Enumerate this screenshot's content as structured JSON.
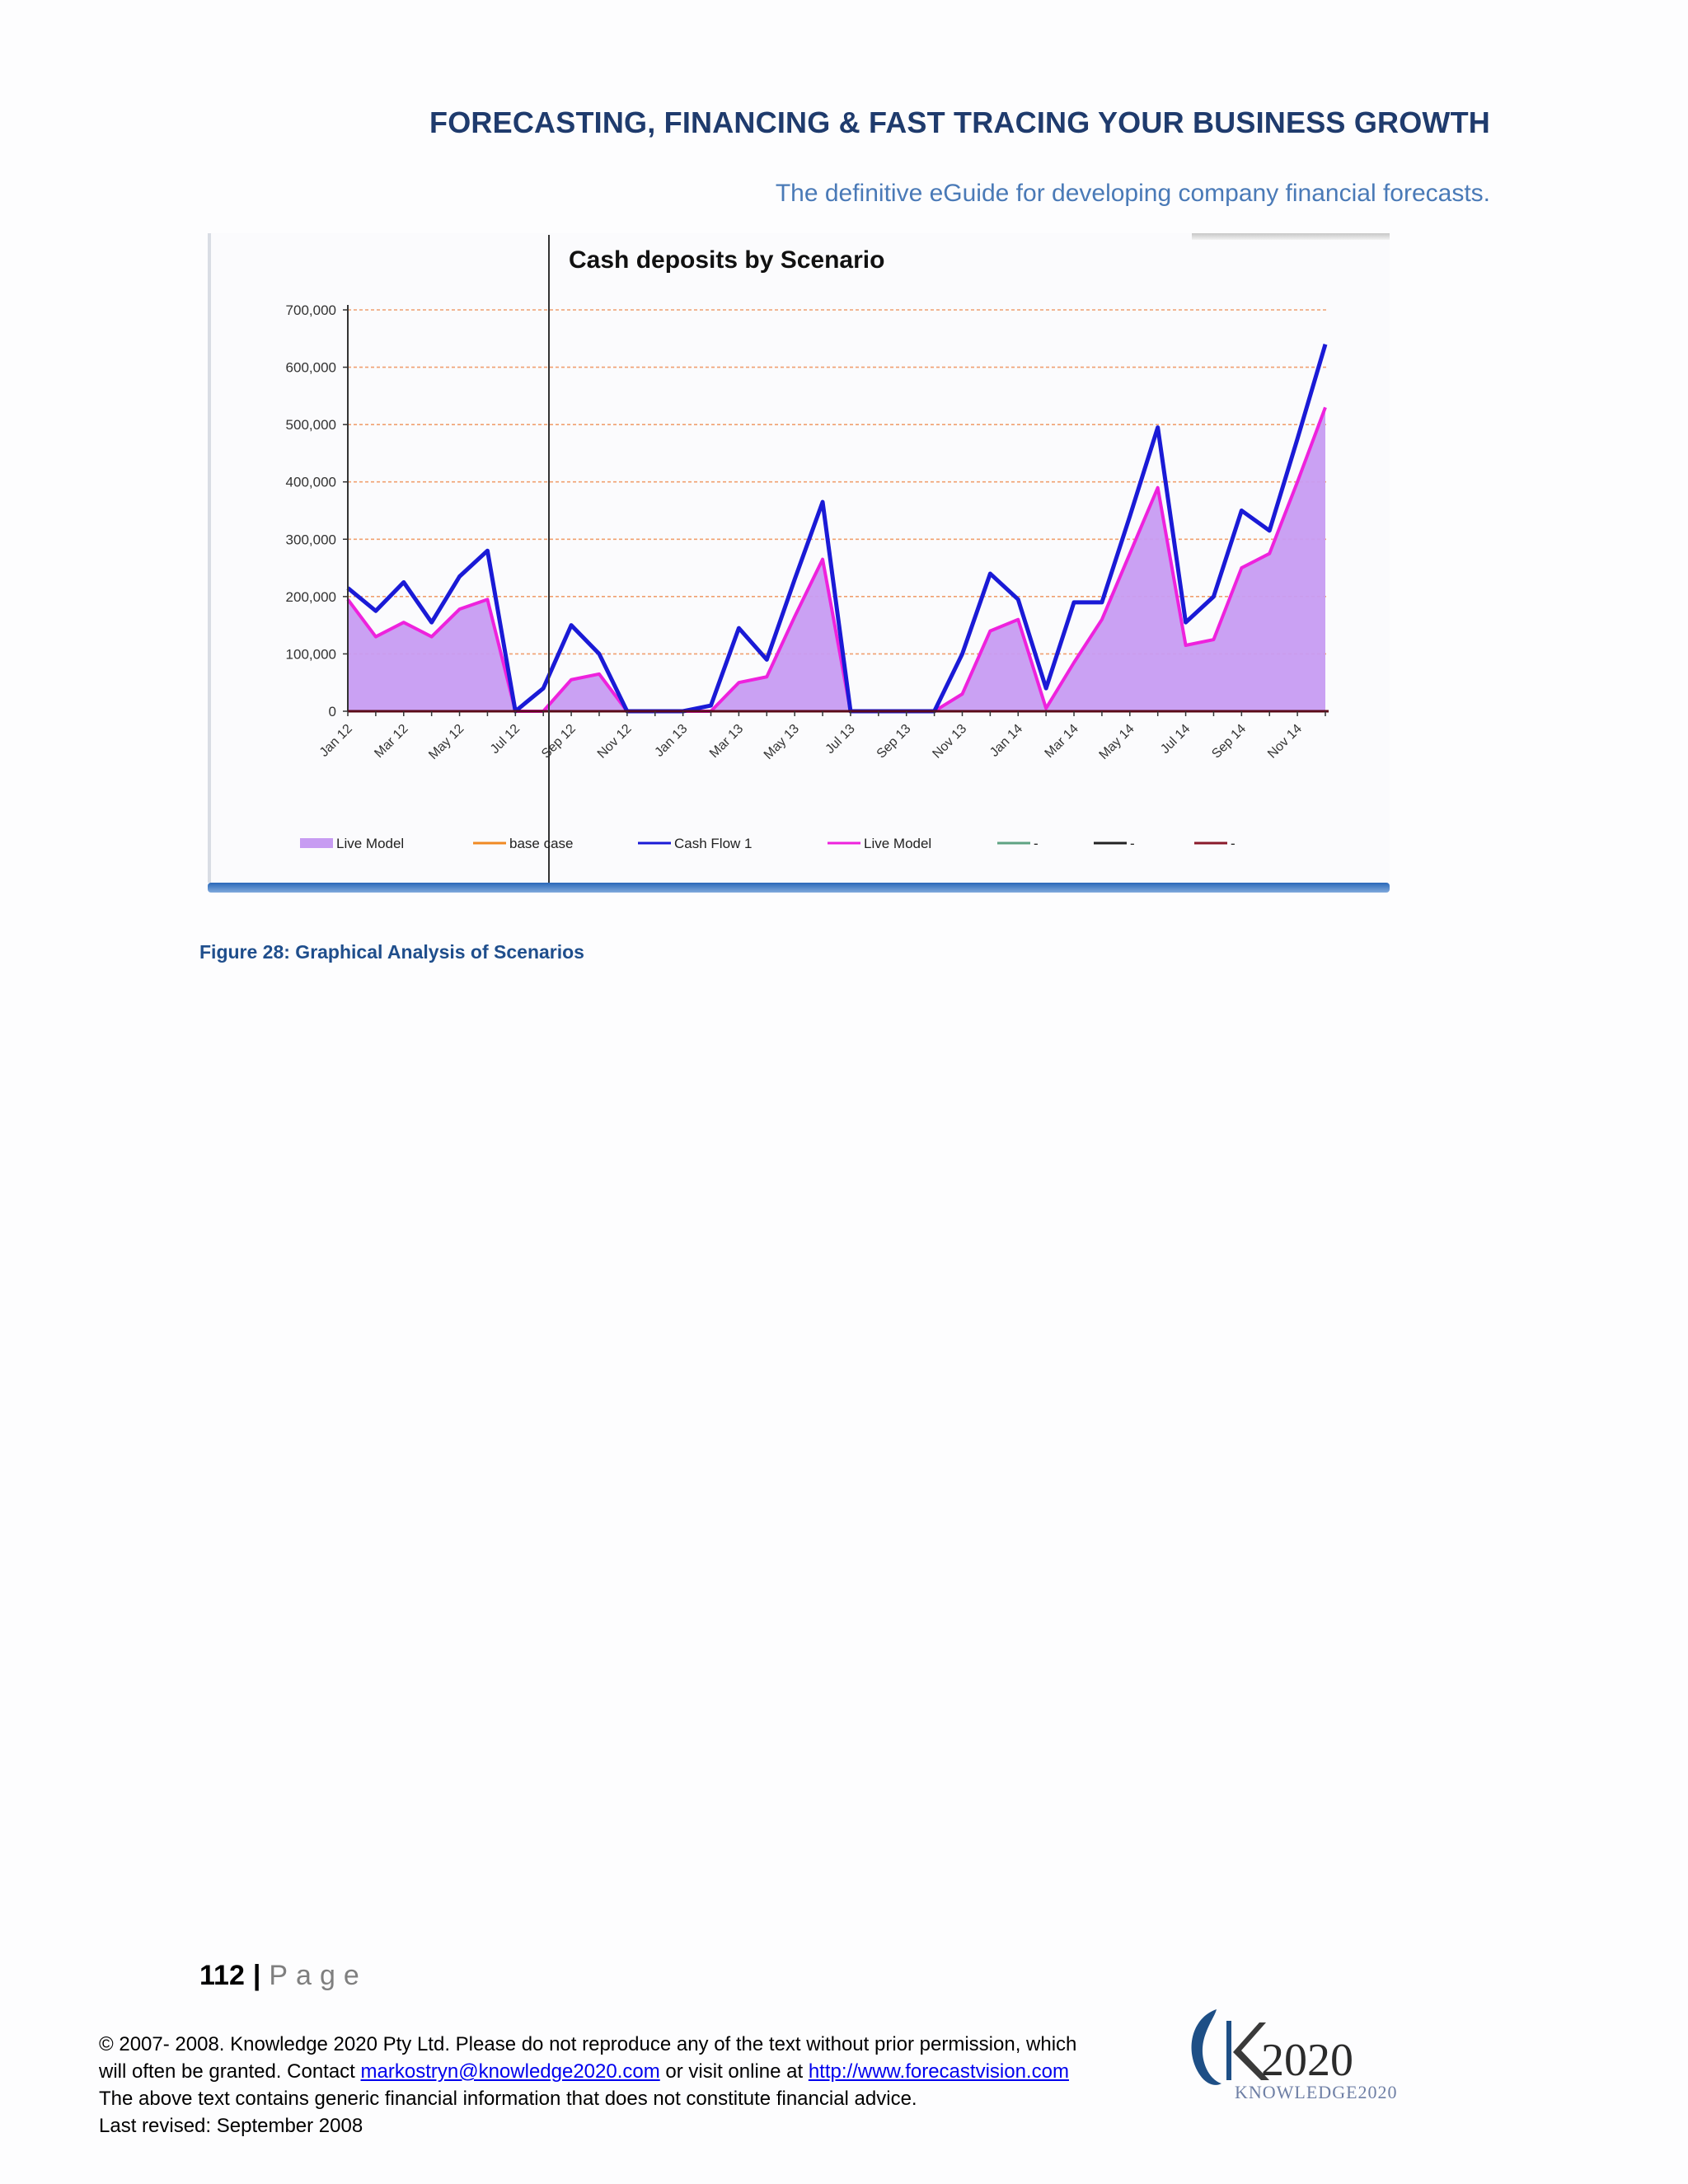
{
  "header": {
    "title": "FORECASTING, FINANCING & FAST TRACING YOUR BUSINESS GROWTH",
    "subtitle": "The definitive eGuide for developing company financial forecasts."
  },
  "figure": {
    "caption": "Figure 28:  Graphical Analysis of Scenarios"
  },
  "chart_data": {
    "type": "line",
    "title": "Cash deposits by Scenario",
    "xlabel": "",
    "ylabel": "",
    "ylim": [
      0,
      700000
    ],
    "y_ticks": [
      0,
      100000,
      200000,
      300000,
      400000,
      500000,
      600000,
      700000
    ],
    "y_tick_labels": [
      "0",
      "100,000",
      "200,000",
      "300,000",
      "400,000",
      "500,000",
      "600,000",
      "700,000"
    ],
    "x_tick_labels": [
      "Jan 12",
      "Mar 12",
      "May 12",
      "Jul 12",
      "Sep 12",
      "Nov 12",
      "Jan 13",
      "Mar 13",
      "May 13",
      "Jul 13",
      "Sep 13",
      "Nov 13",
      "Jan 14",
      "Mar 14",
      "May 14",
      "Jul 14",
      "Sep 14",
      "Nov 14"
    ],
    "categories": [
      "Jan 12",
      "Feb 12",
      "Mar 12",
      "Apr 12",
      "May 12",
      "Jun 12",
      "Jul 12",
      "Aug 12",
      "Sep 12",
      "Oct 12",
      "Nov 12",
      "Dec 12",
      "Jan 13",
      "Feb 13",
      "Mar 13",
      "Apr 13",
      "May 13",
      "Jun 13",
      "Jul 13",
      "Aug 13",
      "Sep 13",
      "Oct 13",
      "Nov 13",
      "Dec 13",
      "Jan 14",
      "Feb 14",
      "Mar 14",
      "Apr 14",
      "May 14",
      "Jun 14",
      "Jul 14",
      "Aug 14",
      "Sep 14",
      "Oct 14",
      "Nov 14",
      "Dec 14"
    ],
    "grid": true,
    "legend_position": "bottom",
    "series": [
      {
        "name": "Live Model",
        "style": "area",
        "color": "#c79cf2",
        "values": [
          195000,
          130000,
          155000,
          130000,
          178000,
          195000,
          0,
          0,
          55000,
          65000,
          0,
          0,
          0,
          0,
          50000,
          60000,
          165000,
          265000,
          0,
          0,
          0,
          0,
          30000,
          140000,
          160000,
          5000,
          85000,
          160000,
          275000,
          390000,
          115000,
          125000,
          250000,
          275000,
          400000,
          530000
        ]
      },
      {
        "name": "base case",
        "style": "line",
        "color": "#f08a24",
        "values": [
          0,
          0,
          0,
          0,
          0,
          0,
          0,
          0,
          0,
          0,
          0,
          0,
          0,
          0,
          0,
          0,
          0,
          0,
          0,
          0,
          0,
          0,
          0,
          0,
          0,
          0,
          0,
          0,
          0,
          0,
          0,
          0,
          0,
          0,
          0,
          0
        ]
      },
      {
        "name": "Cash Flow 1",
        "style": "line",
        "color": "#1a1ad6",
        "values": [
          215000,
          175000,
          225000,
          155000,
          235000,
          280000,
          0,
          40000,
          150000,
          100000,
          0,
          0,
          0,
          10000,
          145000,
          90000,
          230000,
          365000,
          0,
          0,
          0,
          0,
          100000,
          240000,
          195000,
          40000,
          190000,
          190000,
          340000,
          495000,
          155000,
          200000,
          350000,
          315000,
          475000,
          640000
        ]
      },
      {
        "name": "Live Model",
        "style": "line",
        "color": "#ee22dd",
        "values": [
          195000,
          130000,
          155000,
          130000,
          178000,
          195000,
          0,
          0,
          55000,
          65000,
          0,
          0,
          0,
          0,
          50000,
          60000,
          165000,
          265000,
          0,
          0,
          0,
          0,
          30000,
          140000,
          160000,
          5000,
          85000,
          160000,
          275000,
          390000,
          115000,
          125000,
          250000,
          275000,
          400000,
          530000
        ]
      },
      {
        "name": "",
        "style": "line",
        "color": "#5fa383",
        "values": [
          0,
          0,
          0,
          0,
          0,
          0,
          0,
          0,
          0,
          0,
          0,
          0,
          0,
          0,
          0,
          0,
          0,
          0,
          0,
          0,
          0,
          0,
          0,
          0,
          0,
          0,
          0,
          0,
          0,
          0,
          0,
          0,
          0,
          0,
          0,
          0
        ]
      },
      {
        "name": "",
        "style": "line",
        "color": "#222222",
        "values": [
          0,
          0,
          0,
          0,
          0,
          0,
          0,
          0,
          0,
          0,
          0,
          0,
          0,
          0,
          0,
          0,
          0,
          0,
          0,
          0,
          0,
          0,
          0,
          0,
          0,
          0,
          0,
          0,
          0,
          0,
          0,
          0,
          0,
          0,
          0,
          0
        ]
      },
      {
        "name": "",
        "style": "line",
        "color": "#8a1a2a",
        "values": [
          0,
          0,
          0,
          0,
          0,
          0,
          0,
          0,
          0,
          0,
          0,
          0,
          0,
          0,
          0,
          0,
          0,
          0,
          0,
          0,
          0,
          0,
          0,
          0,
          0,
          0,
          0,
          0,
          0,
          0,
          0,
          0,
          0,
          0,
          0,
          0
        ]
      }
    ],
    "legend": [
      {
        "label": "Live Model",
        "kind": "area",
        "color": "#c79cf2"
      },
      {
        "label": "base case",
        "kind": "line",
        "color": "#f08a24"
      },
      {
        "label": "Cash Flow 1",
        "kind": "line",
        "color": "#1a1ad6"
      },
      {
        "label": "Live Model",
        "kind": "line",
        "color": "#ee22dd"
      },
      {
        "label": "-",
        "kind": "line",
        "color": "#5fa383"
      },
      {
        "label": "-",
        "kind": "line",
        "color": "#222222"
      },
      {
        "label": "-",
        "kind": "line",
        "color": "#8a1a2a"
      }
    ]
  },
  "page_number": {
    "number": "112",
    "separator": "|",
    "word": "Page"
  },
  "footer": {
    "line1": "© 2007- 2008.  Knowledge 2020 Pty Ltd. Please do not reproduce any of the text without prior permission, which",
    "line2_pre": "will often be granted.  Contact ",
    "email": "markostryn@knowledge2020.com",
    "line2_mid": " or visit online at ",
    "url": "http://www.forecastvision.com",
    "line3": "The above text contains generic financial information that does not constitute financial advice.",
    "line4": "Last revised: September 2008"
  },
  "logo": {
    "main": "K2020",
    "sub": "KNOWLEDGE2020"
  }
}
